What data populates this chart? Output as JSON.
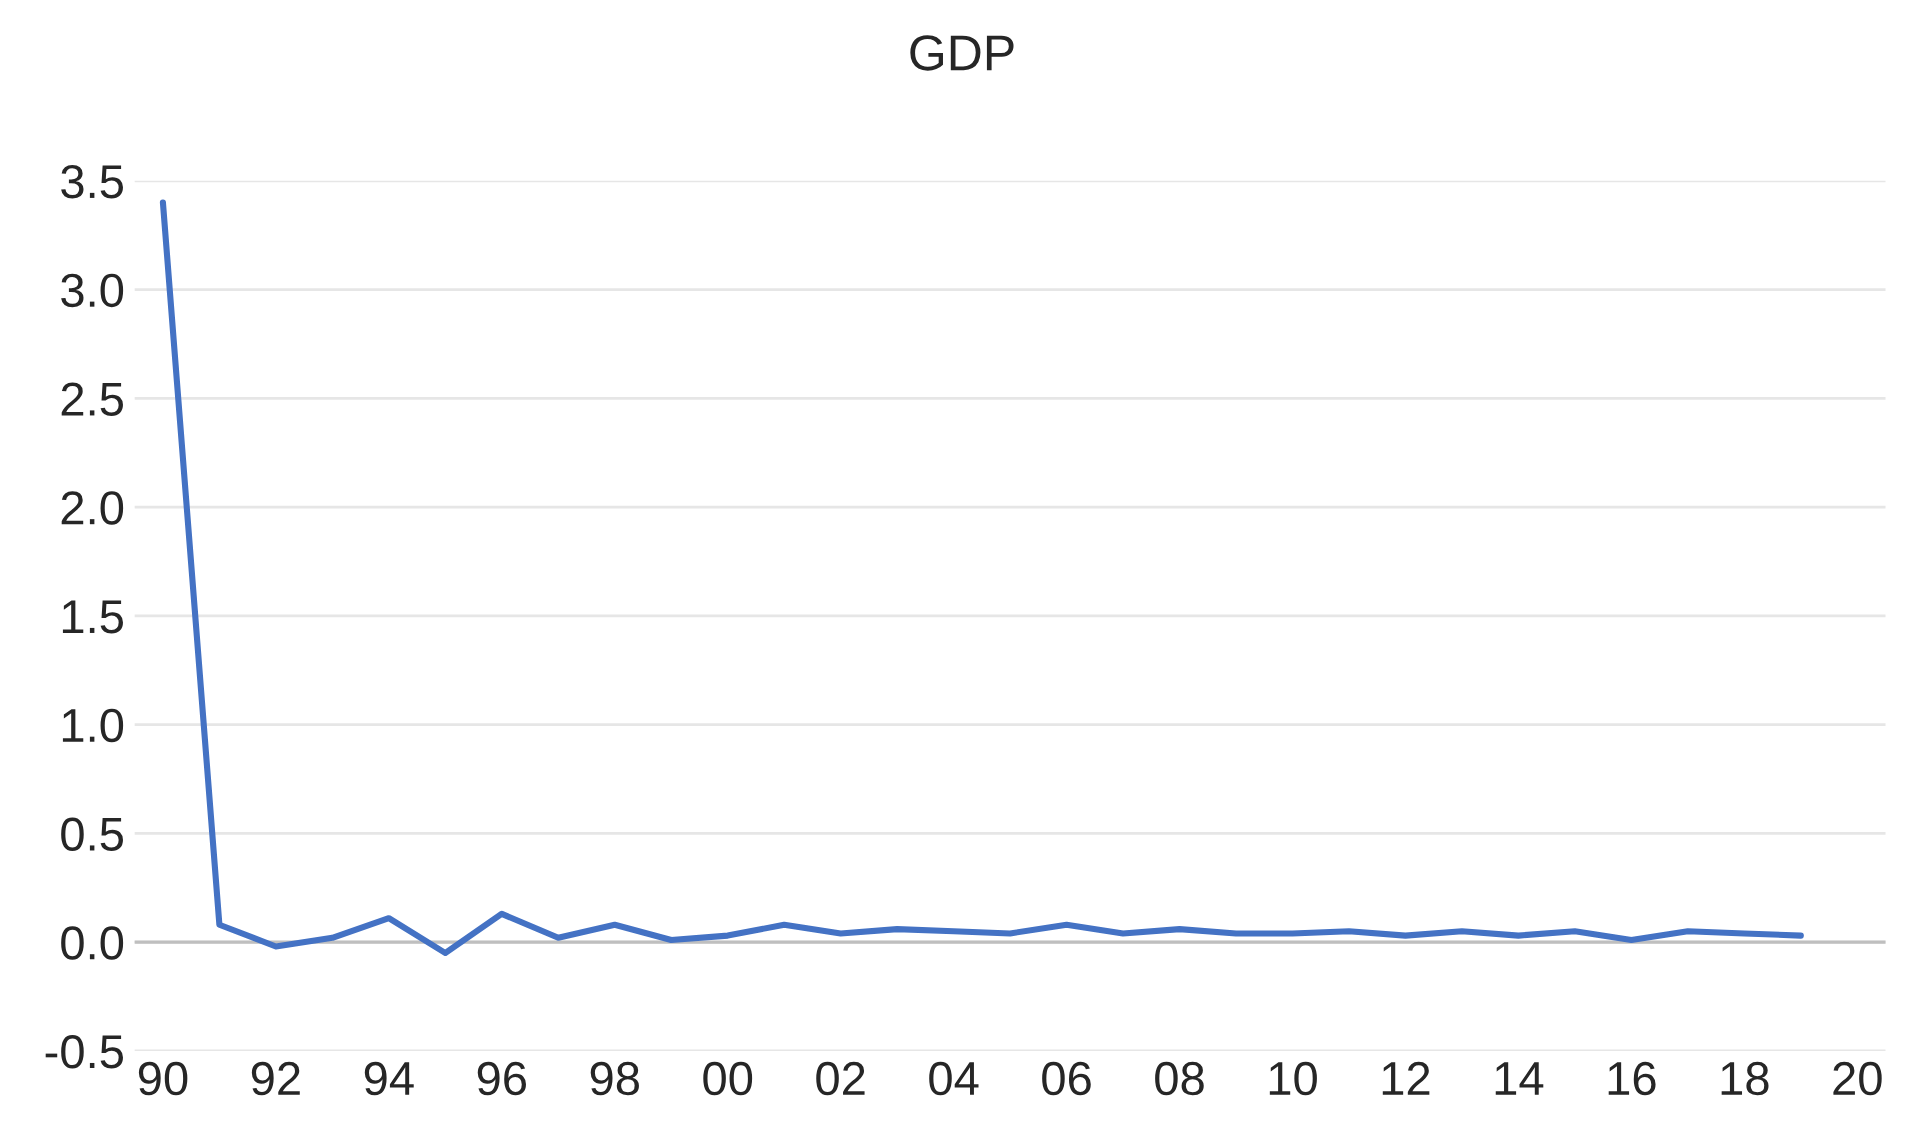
{
  "chart_data": {
    "type": "line",
    "title": "GDP",
    "x": [
      1990,
      1991,
      1992,
      1993,
      1994,
      1995,
      1996,
      1997,
      1998,
      1999,
      2000,
      2001,
      2002,
      2003,
      2004,
      2005,
      2006,
      2007,
      2008,
      2009,
      2010,
      2011,
      2012,
      2013,
      2014,
      2015,
      2016,
      2017,
      2018,
      2019
    ],
    "series": [
      {
        "color": "#4472c4",
        "values": [
          3.4,
          0.08,
          -0.02,
          0.02,
          0.11,
          -0.05,
          0.13,
          0.02,
          0.08,
          0.01,
          0.03,
          0.08,
          0.04,
          0.06,
          0.05,
          0.04,
          0.08,
          0.04,
          0.06,
          0.04,
          0.04,
          0.05,
          0.03,
          0.05,
          0.03,
          0.05,
          0.01,
          0.05,
          0.04,
          0.03
        ]
      }
    ],
    "xlim": [
      1989.5,
      2020.5
    ],
    "xticks": [
      {
        "value": 1990,
        "label": "90"
      },
      {
        "value": 1992,
        "label": "92"
      },
      {
        "value": 1994,
        "label": "94"
      },
      {
        "value": 1996,
        "label": "96"
      },
      {
        "value": 1998,
        "label": "98"
      },
      {
        "value": 2000,
        "label": "00"
      },
      {
        "value": 2002,
        "label": "02"
      },
      {
        "value": 2004,
        "label": "04"
      },
      {
        "value": 2006,
        "label": "06"
      },
      {
        "value": 2008,
        "label": "08"
      },
      {
        "value": 2010,
        "label": "10"
      },
      {
        "value": 2012,
        "label": "12"
      },
      {
        "value": 2014,
        "label": "14"
      },
      {
        "value": 2016,
        "label": "16"
      },
      {
        "value": 2018,
        "label": "18"
      },
      {
        "value": 2020,
        "label": "20"
      }
    ],
    "ylim": [
      -0.5,
      3.5
    ],
    "yticks": [
      -0.5,
      {
        "value": 0,
        "label": "0.0"
      },
      0.5,
      {
        "value": 1,
        "label": "1.0"
      },
      1.5,
      {
        "value": 2,
        "label": "2.0"
      },
      2.5,
      {
        "value": 3,
        "label": "3.0"
      },
      3.5
    ],
    "ref_lines": [
      {
        "axis": "y",
        "value": 0,
        "color": "#bfbfbf"
      }
    ],
    "grid": "y",
    "marker": "none",
    "line_style": "solid",
    "legend": false
  }
}
